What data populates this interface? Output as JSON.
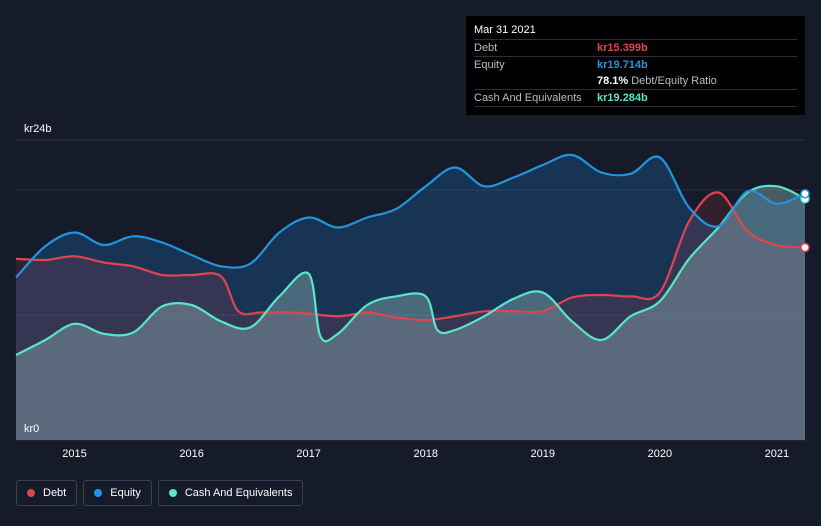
{
  "chart_data": {
    "type": "area",
    "y_axis": {
      "top_label": "kr24b",
      "bottom_label": "kr0",
      "ylim": [
        0,
        24
      ]
    },
    "x_ticks": [
      "2015",
      "2016",
      "2017",
      "2018",
      "2019",
      "2020",
      "2021"
    ],
    "x_tick_values": [
      2015,
      2016,
      2017,
      2018,
      2019,
      2020,
      2021
    ],
    "xlim": [
      2014.5,
      2021.24
    ],
    "grid": true,
    "legend_position": "bottom-left",
    "series": [
      {
        "name": "Debt",
        "color": "#e0444f",
        "points": [
          [
            2014.5,
            14.5
          ],
          [
            2014.75,
            14.4
          ],
          [
            2015.0,
            14.7
          ],
          [
            2015.25,
            14.2
          ],
          [
            2015.5,
            13.9
          ],
          [
            2015.75,
            13.2
          ],
          [
            2016.0,
            13.2
          ],
          [
            2016.25,
            13.1
          ],
          [
            2016.4,
            10.3
          ],
          [
            2016.6,
            10.2
          ],
          [
            2016.9,
            10.2
          ],
          [
            2017.25,
            9.9
          ],
          [
            2017.5,
            10.2
          ],
          [
            2017.75,
            9.8
          ],
          [
            2018.0,
            9.6
          ],
          [
            2018.25,
            9.9
          ],
          [
            2018.5,
            10.3
          ],
          [
            2018.75,
            10.3
          ],
          [
            2019.0,
            10.3
          ],
          [
            2019.25,
            11.4
          ],
          [
            2019.5,
            11.6
          ],
          [
            2019.75,
            11.5
          ],
          [
            2020.0,
            11.8
          ],
          [
            2020.25,
            17.5
          ],
          [
            2020.5,
            19.8
          ],
          [
            2020.75,
            16.7
          ],
          [
            2021.0,
            15.6
          ],
          [
            2021.24,
            15.4
          ]
        ]
      },
      {
        "name": "Equity",
        "color": "#2394df",
        "points": [
          [
            2014.5,
            13.0
          ],
          [
            2014.75,
            15.5
          ],
          [
            2015.0,
            16.6
          ],
          [
            2015.25,
            15.6
          ],
          [
            2015.5,
            16.3
          ],
          [
            2015.75,
            15.8
          ],
          [
            2016.0,
            14.8
          ],
          [
            2016.25,
            13.9
          ],
          [
            2016.5,
            14.1
          ],
          [
            2016.75,
            16.6
          ],
          [
            2017.0,
            17.8
          ],
          [
            2017.25,
            17.0
          ],
          [
            2017.5,
            17.8
          ],
          [
            2017.75,
            18.5
          ],
          [
            2018.0,
            20.3
          ],
          [
            2018.25,
            21.8
          ],
          [
            2018.5,
            20.3
          ],
          [
            2018.75,
            21.0
          ],
          [
            2019.0,
            22.0
          ],
          [
            2019.25,
            22.8
          ],
          [
            2019.5,
            21.4
          ],
          [
            2019.75,
            21.3
          ],
          [
            2020.0,
            22.6
          ],
          [
            2020.25,
            18.6
          ],
          [
            2020.5,
            17.1
          ],
          [
            2020.75,
            19.9
          ],
          [
            2021.0,
            18.9
          ],
          [
            2021.24,
            19.7
          ]
        ]
      },
      {
        "name": "Cash And Equivalents",
        "color": "#58e5c8",
        "points": [
          [
            2014.5,
            6.8
          ],
          [
            2014.75,
            8.0
          ],
          [
            2015.0,
            9.3
          ],
          [
            2015.25,
            8.5
          ],
          [
            2015.5,
            8.6
          ],
          [
            2015.75,
            10.7
          ],
          [
            2016.0,
            10.8
          ],
          [
            2016.25,
            9.5
          ],
          [
            2016.5,
            9.0
          ],
          [
            2016.75,
            11.5
          ],
          [
            2017.0,
            13.3
          ],
          [
            2017.1,
            8.3
          ],
          [
            2017.25,
            8.5
          ],
          [
            2017.5,
            10.8
          ],
          [
            2017.75,
            11.5
          ],
          [
            2018.0,
            11.5
          ],
          [
            2018.1,
            8.8
          ],
          [
            2018.25,
            8.8
          ],
          [
            2018.5,
            9.9
          ],
          [
            2018.75,
            11.3
          ],
          [
            2019.0,
            11.8
          ],
          [
            2019.25,
            9.5
          ],
          [
            2019.5,
            8.0
          ],
          [
            2019.75,
            9.9
          ],
          [
            2020.0,
            11.1
          ],
          [
            2020.25,
            14.5
          ],
          [
            2020.5,
            17.0
          ],
          [
            2020.75,
            19.8
          ],
          [
            2021.0,
            20.3
          ],
          [
            2021.24,
            19.3
          ]
        ]
      }
    ]
  },
  "tooltip": {
    "date": "Mar 31 2021",
    "rows": [
      {
        "label": "Debt",
        "value": "kr15.399b",
        "color": "#e0444f"
      },
      {
        "label": "Equity",
        "value": "kr19.714b",
        "color": "#2394df"
      },
      {
        "label": "",
        "value": "78.1%",
        "color": "#ffffff",
        "suffix": "Debt/Equity Ratio"
      },
      {
        "label": "Cash And Equivalents",
        "value": "kr19.284b",
        "color": "#58e5c8"
      }
    ]
  },
  "legend": [
    {
      "label": "Debt",
      "color": "#e0444f"
    },
    {
      "label": "Equity",
      "color": "#2394df"
    },
    {
      "label": "Cash And Equivalents",
      "color": "#58e5c8"
    }
  ]
}
